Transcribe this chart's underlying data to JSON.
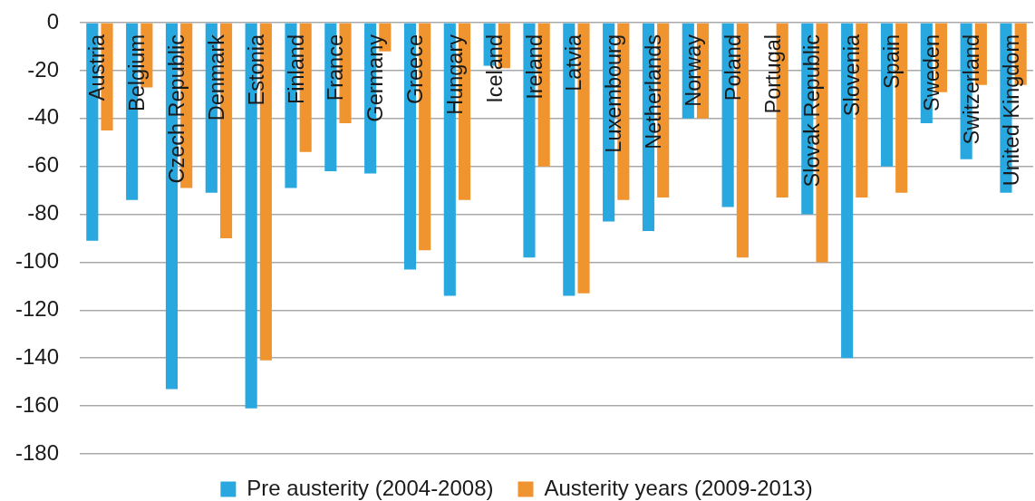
{
  "chart_data": {
    "type": "bar",
    "categories": [
      "Austria",
      "Belgium",
      "Czech Republic",
      "Denmark",
      "Estonia",
      "Finland",
      "France",
      "Germany",
      "Greece",
      "Hungary",
      "Iceland",
      "Ireland",
      "Latvia",
      "Luxembourg",
      "Netherlands",
      "Norway",
      "Poland",
      "Portugal",
      "Slovak Republic",
      "Slovenia",
      "Spain",
      "Sweden",
      "Switzerland",
      "United Kingdom"
    ],
    "series": [
      {
        "name": "Pre austerity (2004-2008)",
        "color": "#29a8e0",
        "values": [
          -91,
          -74,
          -153,
          -71,
          -161,
          -69,
          -62,
          -63,
          -103,
          -114,
          -18,
          -98,
          -114,
          -83,
          -87,
          -40,
          -77,
          null,
          -80,
          -140,
          -60,
          -42,
          -57,
          -71
        ]
      },
      {
        "name": "Austerity years (2009-2013)",
        "color": "#f09430",
        "values": [
          -45,
          -27,
          -69,
          -90,
          -141,
          -54,
          -42,
          -12,
          -95,
          -74,
          -19,
          -60,
          -113,
          -74,
          -73,
          -40,
          -98,
          -73,
          -100,
          -73,
          -71,
          -29,
          -26,
          -26
        ]
      }
    ],
    "ylim": [
      -180,
      0
    ],
    "yticks": [
      -180,
      -160,
      -140,
      -120,
      -100,
      -80,
      -60,
      -40,
      -20,
      0
    ],
    "grid": "y",
    "legend": "bottom"
  }
}
